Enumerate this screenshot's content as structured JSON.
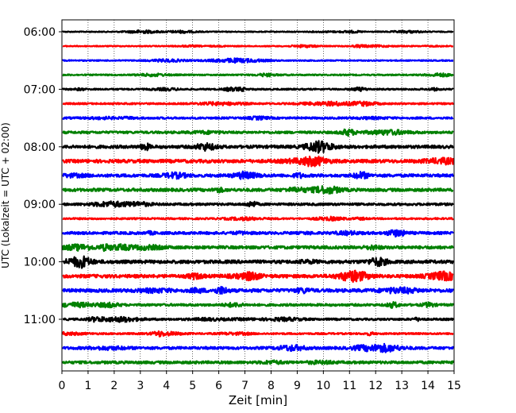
{
  "chart_data": {
    "type": "line",
    "title": "",
    "xlabel": "Zeit  [min]",
    "ylabel": "UTC (Lokalzeit = UTC + 02:00)",
    "xlim": [
      0,
      15
    ],
    "x_ticks": [
      0,
      1,
      2,
      3,
      4,
      5,
      6,
      7,
      8,
      9,
      10,
      11,
      12,
      13,
      14,
      15
    ],
    "y_tick_labels": [
      "06:00",
      "07:00",
      "08:00",
      "09:00",
      "10:00",
      "11:00"
    ],
    "trace_interval_minutes": 15,
    "grid": "vertical dotted",
    "trace_colors": [
      "#000000",
      "#ff0000",
      "#0000ff",
      "#008000"
    ],
    "traces": [
      {
        "start": "06:00",
        "amplitude": 0.6
      },
      {
        "start": "06:15",
        "amplitude": 0.6
      },
      {
        "start": "06:30",
        "amplitude": 0.7
      },
      {
        "start": "06:45",
        "amplitude": 0.8
      },
      {
        "start": "07:00",
        "amplitude": 0.9
      },
      {
        "start": "07:15",
        "amplitude": 1.0
      },
      {
        "start": "07:30",
        "amplitude": 1.2
      },
      {
        "start": "07:45",
        "amplitude": 1.4
      },
      {
        "start": "08:00",
        "amplitude": 1.8
      },
      {
        "start": "08:15",
        "amplitude": 2.0
      },
      {
        "start": "08:30",
        "amplitude": 1.8
      },
      {
        "start": "08:45",
        "amplitude": 1.8
      },
      {
        "start": "09:00",
        "amplitude": 1.4
      },
      {
        "start": "09:15",
        "amplitude": 1.0
      },
      {
        "start": "09:30",
        "amplitude": 1.6
      },
      {
        "start": "09:45",
        "amplitude": 1.8
      },
      {
        "start": "10:00",
        "amplitude": 2.0
      },
      {
        "start": "10:15",
        "amplitude": 2.0
      },
      {
        "start": "10:30",
        "amplitude": 2.0
      },
      {
        "start": "10:45",
        "amplitude": 1.4
      },
      {
        "start": "11:00",
        "amplitude": 1.2
      },
      {
        "start": "11:15",
        "amplitude": 1.0
      },
      {
        "start": "11:30",
        "amplitude": 1.6
      },
      {
        "start": "11:45",
        "amplitude": 1.6
      }
    ]
  }
}
